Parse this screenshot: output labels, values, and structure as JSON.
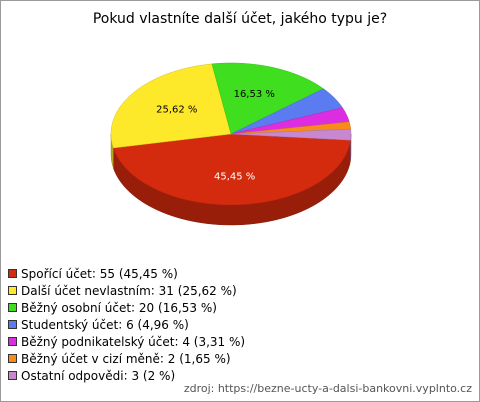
{
  "chart_data": {
    "type": "pie3d",
    "title": "Pokud vlastníte další účet, jakého typu je?",
    "categories": [
      "Spořící účet",
      "Další účet nevlastním",
      "Běžný osobní účet",
      "Studentský účet",
      "Běžný podnikatelský účet",
      "Běžný účet v cizí měně",
      "Ostatní odpovědi"
    ],
    "values": [
      55,
      31,
      20,
      6,
      4,
      2,
      3
    ],
    "value_labels": [
      "45,45 %",
      "25,62 %",
      "16,53 %",
      "4,96 %",
      "3,31 %",
      "1,65 %",
      "2 %"
    ],
    "colors": [
      "#d42a0e",
      "#fde82a",
      "#3fdf1f",
      "#5a7cf0",
      "#dc2ee0",
      "#f98b1c",
      "#c888d0"
    ],
    "legend": "bottom-left",
    "source": "zdroj: https://bezne-ucty-a-dalsi-bankovni.vyplnto.cz"
  }
}
